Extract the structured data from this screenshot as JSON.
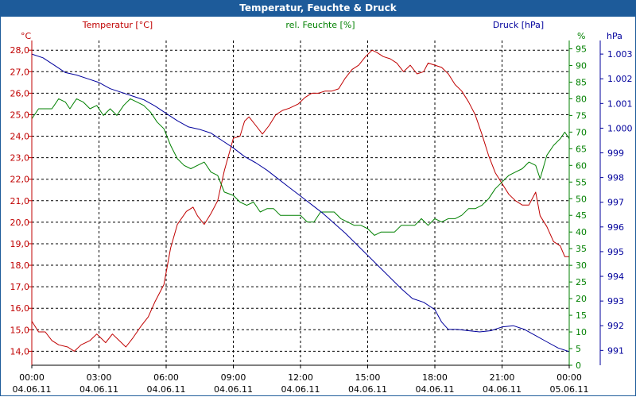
{
  "window": {
    "title": "Temperatur, Feuchte & Druck"
  },
  "colors": {
    "temperature": "#c00000",
    "humidity": "#008000",
    "pressure": "#00009c",
    "titlebar": "#1d5b9a"
  },
  "chart_data": {
    "type": "line",
    "title": "Temperatur, Feuchte & Druck",
    "x_ticks": [
      {
        "time": "00:00",
        "date": "04.06.11"
      },
      {
        "time": "03:00",
        "date": "04.06.11"
      },
      {
        "time": "06:00",
        "date": "04.06.11"
      },
      {
        "time": "09:00",
        "date": "04.06.11"
      },
      {
        "time": "12:00",
        "date": "04.06.11"
      },
      {
        "time": "15:00",
        "date": "04.06.11"
      },
      {
        "time": "18:00",
        "date": "04.06.11"
      },
      {
        "time": "21:00",
        "date": "04.06.11"
      },
      {
        "time": "00:00",
        "date": "05.06.11"
      }
    ],
    "xlim": [
      0,
      24
    ],
    "axes": {
      "temperature": {
        "label": "Temperatur [°C]",
        "unit": "°C",
        "ylim": [
          13.35,
          28.45
        ],
        "ticks": [
          "14,0",
          "15,0",
          "16,0",
          "17,0",
          "18,0",
          "19,0",
          "20,0",
          "21,0",
          "22,0",
          "23,0",
          "24,0",
          "25,0",
          "26,0",
          "27,0",
          "28,0"
        ],
        "tick_values": [
          14,
          15,
          16,
          17,
          18,
          19,
          20,
          21,
          22,
          23,
          24,
          25,
          26,
          27,
          28
        ]
      },
      "humidity": {
        "label": "rel. Feuchte [%]",
        "unit": "%",
        "ylim": [
          0,
          97.5
        ],
        "ticks": [
          "0",
          "5",
          "10",
          "15",
          "20",
          "25",
          "30",
          "35",
          "40",
          "45",
          "50",
          "55",
          "60",
          "65",
          "70",
          "75",
          "80",
          "85",
          "90",
          "95"
        ],
        "tick_values": [
          0,
          5,
          10,
          15,
          20,
          25,
          30,
          35,
          40,
          45,
          50,
          55,
          60,
          65,
          70,
          75,
          80,
          85,
          90,
          95
        ]
      },
      "pressure": {
        "label": "Druck [hPa]",
        "unit": "hPa",
        "ylim": [
          990.4,
          1003.55
        ],
        "ticks": [
          "991",
          "992",
          "993",
          "994",
          "995",
          "996",
          "997",
          "998",
          "999",
          "1.000",
          "1.001",
          "1.002",
          "1.003"
        ],
        "tick_values": [
          991,
          992,
          993,
          994,
          995,
          996,
          997,
          998,
          999,
          1000,
          1001,
          1002,
          1003
        ]
      }
    },
    "series": [
      {
        "name": "Temperatur [°C]",
        "axis": "temperature",
        "color": "#c00000",
        "points": [
          [
            0,
            15.4
          ],
          [
            0.3,
            14.9
          ],
          [
            0.6,
            14.9
          ],
          [
            0.9,
            14.5
          ],
          [
            1.2,
            14.3
          ],
          [
            1.6,
            14.2
          ],
          [
            1.9,
            14.0
          ],
          [
            2.2,
            14.3
          ],
          [
            2.6,
            14.5
          ],
          [
            2.9,
            14.8
          ],
          [
            3.1,
            14.6
          ],
          [
            3.3,
            14.4
          ],
          [
            3.6,
            14.8
          ],
          [
            3.9,
            14.5
          ],
          [
            4.2,
            14.2
          ],
          [
            4.5,
            14.6
          ],
          [
            4.9,
            15.2
          ],
          [
            5.2,
            15.6
          ],
          [
            5.5,
            16.3
          ],
          [
            5.9,
            17.1
          ],
          [
            6.2,
            18.8
          ],
          [
            6.5,
            19.9
          ],
          [
            6.9,
            20.5
          ],
          [
            7.2,
            20.7
          ],
          [
            7.4,
            20.3
          ],
          [
            7.7,
            19.9
          ],
          [
            8.0,
            20.4
          ],
          [
            8.3,
            21.0
          ],
          [
            8.6,
            22.4
          ],
          [
            9.0,
            23.9
          ],
          [
            9.3,
            24.0
          ],
          [
            9.5,
            24.7
          ],
          [
            9.7,
            24.9
          ],
          [
            10.0,
            24.5
          ],
          [
            10.3,
            24.1
          ],
          [
            10.6,
            24.5
          ],
          [
            10.9,
            25.0
          ],
          [
            11.2,
            25.2
          ],
          [
            11.5,
            25.3
          ],
          [
            11.9,
            25.5
          ],
          [
            12.2,
            25.8
          ],
          [
            12.5,
            26.0
          ],
          [
            12.8,
            26.0
          ],
          [
            13.1,
            26.1
          ],
          [
            13.4,
            26.1
          ],
          [
            13.7,
            26.2
          ],
          [
            14.0,
            26.7
          ],
          [
            14.3,
            27.1
          ],
          [
            14.6,
            27.3
          ],
          [
            14.9,
            27.7
          ],
          [
            15.2,
            28.0
          ],
          [
            15.4,
            27.9
          ],
          [
            15.7,
            27.7
          ],
          [
            16.0,
            27.6
          ],
          [
            16.3,
            27.4
          ],
          [
            16.6,
            27.0
          ],
          [
            16.9,
            27.3
          ],
          [
            17.2,
            26.9
          ],
          [
            17.5,
            27.0
          ],
          [
            17.7,
            27.4
          ],
          [
            18.0,
            27.3
          ],
          [
            18.3,
            27.2
          ],
          [
            18.6,
            26.9
          ],
          [
            18.9,
            26.4
          ],
          [
            19.2,
            26.1
          ],
          [
            19.5,
            25.6
          ],
          [
            19.8,
            25.0
          ],
          [
            20.1,
            24.1
          ],
          [
            20.4,
            23.1
          ],
          [
            20.7,
            22.3
          ],
          [
            21.0,
            21.8
          ],
          [
            21.3,
            21.3
          ],
          [
            21.6,
            21.0
          ],
          [
            21.9,
            20.8
          ],
          [
            22.2,
            20.8
          ],
          [
            22.5,
            21.4
          ],
          [
            22.7,
            20.3
          ],
          [
            23.0,
            19.8
          ],
          [
            23.3,
            19.1
          ],
          [
            23.6,
            18.9
          ],
          [
            23.8,
            18.4
          ],
          [
            24.0,
            18.4
          ]
        ]
      },
      {
        "name": "rel. Feuchte [%]",
        "axis": "humidity",
        "color": "#008000",
        "points": [
          [
            0,
            74
          ],
          [
            0.3,
            77
          ],
          [
            0.6,
            77
          ],
          [
            0.9,
            77
          ],
          [
            1.2,
            80
          ],
          [
            1.5,
            79
          ],
          [
            1.7,
            77
          ],
          [
            2.0,
            80
          ],
          [
            2.3,
            79
          ],
          [
            2.6,
            77
          ],
          [
            2.9,
            78
          ],
          [
            3.2,
            75
          ],
          [
            3.5,
            77
          ],
          [
            3.8,
            75
          ],
          [
            4.1,
            78
          ],
          [
            4.4,
            80
          ],
          [
            4.7,
            79
          ],
          [
            5.0,
            78
          ],
          [
            5.3,
            76
          ],
          [
            5.6,
            73
          ],
          [
            5.9,
            71
          ],
          [
            6.2,
            66
          ],
          [
            6.5,
            62
          ],
          [
            6.8,
            60
          ],
          [
            7.1,
            59
          ],
          [
            7.4,
            60
          ],
          [
            7.7,
            61
          ],
          [
            8.0,
            58
          ],
          [
            8.3,
            57
          ],
          [
            8.6,
            52
          ],
          [
            9.0,
            51
          ],
          [
            9.3,
            49
          ],
          [
            9.6,
            48
          ],
          [
            9.9,
            49
          ],
          [
            10.2,
            46
          ],
          [
            10.5,
            47
          ],
          [
            10.8,
            47
          ],
          [
            11.1,
            45
          ],
          [
            11.4,
            45
          ],
          [
            11.7,
            45
          ],
          [
            12.0,
            45
          ],
          [
            12.3,
            43
          ],
          [
            12.6,
            43
          ],
          [
            12.9,
            46
          ],
          [
            13.2,
            46
          ],
          [
            13.5,
            46
          ],
          [
            13.8,
            44
          ],
          [
            14.1,
            43
          ],
          [
            14.4,
            42
          ],
          [
            14.7,
            42
          ],
          [
            15.0,
            41
          ],
          [
            15.3,
            39
          ],
          [
            15.6,
            40
          ],
          [
            15.9,
            40
          ],
          [
            16.2,
            40
          ],
          [
            16.5,
            42
          ],
          [
            16.8,
            42
          ],
          [
            17.1,
            42
          ],
          [
            17.4,
            44
          ],
          [
            17.7,
            42
          ],
          [
            18.0,
            44
          ],
          [
            18.3,
            43
          ],
          [
            18.6,
            44
          ],
          [
            18.9,
            44
          ],
          [
            19.2,
            45
          ],
          [
            19.5,
            47
          ],
          [
            19.8,
            47
          ],
          [
            20.1,
            48
          ],
          [
            20.4,
            50
          ],
          [
            20.7,
            53
          ],
          [
            21.0,
            55
          ],
          [
            21.3,
            57
          ],
          [
            21.6,
            58
          ],
          [
            21.9,
            59
          ],
          [
            22.2,
            61
          ],
          [
            22.5,
            60
          ],
          [
            22.7,
            56
          ],
          [
            23.0,
            63
          ],
          [
            23.3,
            66
          ],
          [
            23.6,
            68
          ],
          [
            23.8,
            70
          ],
          [
            24.0,
            68
          ]
        ]
      },
      {
        "name": "Druck [hPa]",
        "axis": "pressure",
        "color": "#00009c",
        "points": [
          [
            0,
            1003.0
          ],
          [
            0.5,
            1002.85
          ],
          [
            1.0,
            1002.55
          ],
          [
            1.5,
            1002.25
          ],
          [
            2.0,
            1002.15
          ],
          [
            2.5,
            1002.0
          ],
          [
            3.0,
            1001.85
          ],
          [
            3.5,
            1001.6
          ],
          [
            4.0,
            1001.45
          ],
          [
            4.5,
            1001.3
          ],
          [
            5.0,
            1001.15
          ],
          [
            5.5,
            1000.9
          ],
          [
            6.0,
            1000.6
          ],
          [
            6.5,
            1000.3
          ],
          [
            7.0,
            1000.05
          ],
          [
            7.5,
            999.95
          ],
          [
            8.0,
            999.8
          ],
          [
            8.5,
            999.5
          ],
          [
            9.0,
            999.2
          ],
          [
            9.5,
            998.85
          ],
          [
            10.0,
            998.6
          ],
          [
            10.5,
            998.3
          ],
          [
            11.0,
            997.95
          ],
          [
            11.5,
            997.6
          ],
          [
            12.0,
            997.25
          ],
          [
            12.5,
            996.9
          ],
          [
            13.0,
            996.55
          ],
          [
            13.5,
            996.15
          ],
          [
            14.0,
            995.75
          ],
          [
            14.5,
            995.3
          ],
          [
            15.0,
            994.85
          ],
          [
            15.5,
            994.4
          ],
          [
            16.0,
            993.95
          ],
          [
            16.5,
            993.5
          ],
          [
            17.0,
            993.1
          ],
          [
            17.5,
            992.95
          ],
          [
            18.0,
            992.65
          ],
          [
            18.3,
            992.15
          ],
          [
            18.6,
            991.85
          ],
          [
            19.0,
            991.85
          ],
          [
            19.5,
            991.8
          ],
          [
            20.0,
            991.75
          ],
          [
            20.5,
            991.8
          ],
          [
            21.0,
            991.95
          ],
          [
            21.5,
            992.0
          ],
          [
            22.0,
            991.85
          ],
          [
            22.5,
            991.6
          ],
          [
            23.0,
            991.35
          ],
          [
            23.5,
            991.1
          ],
          [
            24.0,
            990.95
          ]
        ]
      }
    ]
  }
}
